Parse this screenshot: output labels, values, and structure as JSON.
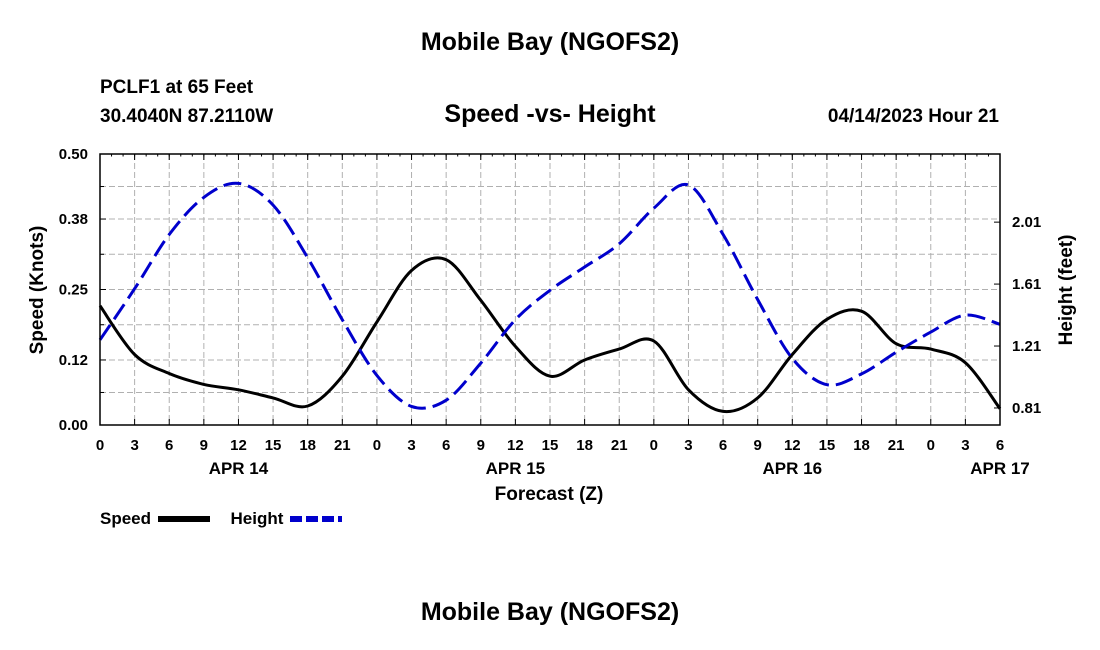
{
  "header": {
    "title": "Mobile Bay (NGOFS2)",
    "station": "PCLF1 at 65 Feet",
    "coords": "30.4040N  87.2110W",
    "subtitle": "Speed -vs- Height",
    "datetime": "04/14/2023 Hour 21"
  },
  "footer": {
    "title": "Mobile Bay (NGOFS2)"
  },
  "legend": {
    "speed_label": "Speed",
    "height_label": "Height"
  },
  "colors": {
    "speed": "#000000",
    "height": "#0000cc",
    "grid": "#b0b0b0"
  },
  "chart_data": {
    "type": "line",
    "title": "Speed -vs- Height",
    "xlabel": "Forecast (Z)",
    "ylabel": "Speed (Knots)",
    "y2label": "Height (feet)",
    "xlim": [
      0,
      78
    ],
    "ylim": [
      0,
      0.5
    ],
    "y2lim": [
      0.7,
      2.45
    ],
    "x_ticks": [
      0,
      3,
      6,
      9,
      12,
      15,
      18,
      21,
      24,
      27,
      30,
      33,
      36,
      39,
      42,
      45,
      48,
      51,
      54,
      57,
      60,
      63,
      66,
      69,
      72,
      75,
      78
    ],
    "x_tick_labels": [
      "0",
      "3",
      "6",
      "9",
      "12",
      "15",
      "18",
      "21",
      "0",
      "3",
      "6",
      "9",
      "12",
      "15",
      "18",
      "21",
      "0",
      "3",
      "6",
      "9",
      "12",
      "15",
      "18",
      "21",
      "0",
      "3",
      "6"
    ],
    "y_ticks": [
      0.0,
      0.12,
      0.25,
      0.38,
      0.5
    ],
    "y_tick_labels": [
      "0.00",
      "0.12",
      "0.25",
      "0.38",
      "0.50"
    ],
    "y2_ticks": [
      0.81,
      1.21,
      1.61,
      2.01
    ],
    "y2_tick_labels": [
      "0.81",
      "1.21",
      "1.61",
      "2.01"
    ],
    "day_labels": [
      {
        "x": 12,
        "label": "APR 14"
      },
      {
        "x": 36,
        "label": "APR 15"
      },
      {
        "x": 60,
        "label": "APR 16"
      },
      {
        "x": 78,
        "label": "APR 17"
      }
    ],
    "series": [
      {
        "name": "Speed",
        "axis": "left",
        "style": "solid",
        "x": [
          0,
          3,
          6,
          9,
          12,
          15,
          18,
          21,
          24,
          27,
          30,
          33,
          36,
          39,
          42,
          45,
          48,
          51,
          54,
          57,
          60,
          63,
          66,
          69,
          72,
          75,
          78
        ],
        "values": [
          0.22,
          0.13,
          0.095,
          0.075,
          0.065,
          0.05,
          0.035,
          0.09,
          0.19,
          0.285,
          0.305,
          0.23,
          0.145,
          0.09,
          0.12,
          0.14,
          0.155,
          0.065,
          0.025,
          0.05,
          0.13,
          0.195,
          0.21,
          0.15,
          0.14,
          0.115,
          0.03
        ]
      },
      {
        "name": "Height",
        "axis": "right",
        "style": "dashed",
        "x": [
          0,
          3,
          6,
          9,
          12,
          15,
          18,
          21,
          24,
          27,
          30,
          33,
          36,
          39,
          42,
          45,
          48,
          51,
          54,
          57,
          60,
          63,
          66,
          69,
          72,
          75,
          78
        ],
        "values": [
          1.25,
          1.58,
          1.93,
          2.17,
          2.26,
          2.12,
          1.78,
          1.38,
          1.02,
          0.82,
          0.86,
          1.1,
          1.38,
          1.57,
          1.72,
          1.87,
          2.1,
          2.25,
          1.93,
          1.51,
          1.13,
          0.96,
          1.03,
          1.17,
          1.3,
          1.41,
          1.35
        ]
      }
    ]
  }
}
